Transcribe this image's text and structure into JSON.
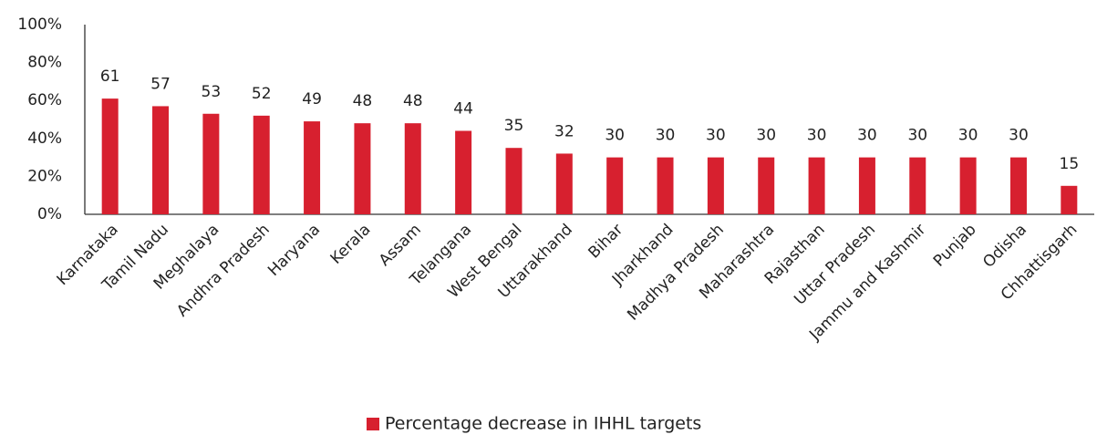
{
  "chart_data": {
    "type": "bar",
    "categories": [
      "Karnataka",
      "Tamil Nadu",
      "Meghalaya",
      "Andhra Pradesh",
      "Haryana",
      "Kerala",
      "Assam",
      "Telangana",
      "West Bengal",
      "Uttarakhand",
      "Bihar",
      "Jharkhand",
      "Madhya Pradesh",
      "Maharashtra",
      "Rajasthan",
      "Uttar Pradesh",
      "Jammu and Kashmir",
      "Punjab",
      "Odisha",
      "Chhattisgarh"
    ],
    "series": [
      {
        "name": "Percentage decrease in IHHL targets",
        "color": "#d7202f",
        "values": [
          61,
          57,
          53,
          52,
          49,
          48,
          48,
          44,
          35,
          32,
          30,
          30,
          30,
          30,
          30,
          30,
          30,
          30,
          30,
          15
        ]
      }
    ],
    "ylim": [
      0,
      100
    ],
    "yticks": [
      {
        "value": 0,
        "label": "0%"
      },
      {
        "value": 20,
        "label": "20%"
      },
      {
        "value": 40,
        "label": "40%"
      },
      {
        "value": 60,
        "label": "60%"
      },
      {
        "value": 80,
        "label": "80%"
      },
      {
        "value": 100,
        "label": "100%"
      }
    ],
    "grid": false,
    "legend": "bottom"
  }
}
